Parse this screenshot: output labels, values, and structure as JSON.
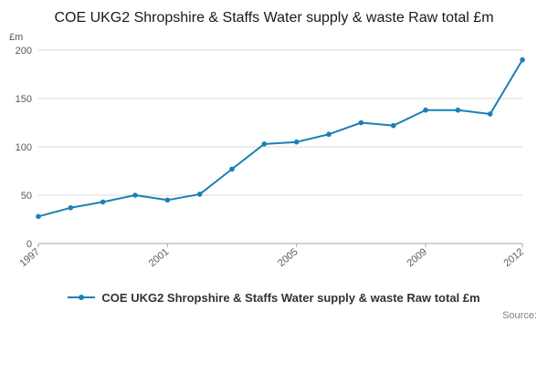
{
  "title": "COE UKG2 Shropshire & Staffs Water supply & waste Raw total £m",
  "unit_label": "£m",
  "legend": {
    "label": "COE UKG2 Shropshire & Staffs Water supply & waste Raw total £m"
  },
  "source_label": "Source:",
  "colors": {
    "line": "#1a80b6",
    "grid": "#d9d9d9",
    "axis": "#a6a6a6",
    "tick_text": "#595959"
  },
  "chart_data": {
    "type": "line",
    "title": "COE UKG2 Shropshire & Staffs Water supply & waste Raw total £m",
    "xlabel": "",
    "ylabel": "£m",
    "x": [
      1997,
      1998,
      1999,
      2000,
      2001,
      2002,
      2003,
      2004,
      2005,
      2006,
      2007,
      2008,
      2009,
      2010,
      2011,
      2012
    ],
    "values": [
      28,
      37,
      43,
      50,
      45,
      51,
      77,
      103,
      105,
      113,
      125,
      122,
      138,
      138,
      134,
      190
    ],
    "ylim": [
      0,
      200
    ],
    "yticks": [
      0,
      50,
      100,
      150,
      200
    ],
    "xticks": [
      1997,
      2001,
      2005,
      2009,
      2012
    ],
    "grid": true,
    "legend_position": "bottom",
    "marker": "circle"
  }
}
